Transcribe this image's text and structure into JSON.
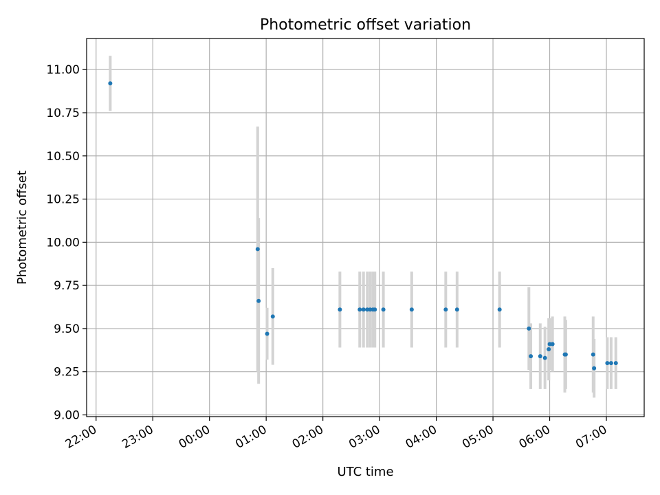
{
  "chart_data": {
    "type": "scatter",
    "title": "Photometric offset variation",
    "xlabel": "UTC time",
    "ylabel": "Photometric offset",
    "x_ticks": [
      "22:00",
      "23:00",
      "00:00",
      "01:00",
      "02:00",
      "03:00",
      "04:00",
      "05:00",
      "06:00",
      "07:00"
    ],
    "y_ticks": [
      "9.00",
      "9.25",
      "9.50",
      "9.75",
      "10.00",
      "10.25",
      "10.50",
      "10.75",
      "11.00"
    ],
    "xlim": [
      "21:50",
      "07:40"
    ],
    "ylim": [
      8.99,
      11.18
    ],
    "grid": true,
    "colors": {
      "marker": "#1f77b4",
      "errorbar": "#d3d3d3",
      "grid": "#b0b0b0"
    },
    "points": [
      {
        "time": "22:15",
        "y": 10.92,
        "yerr": 0.16
      },
      {
        "time": "00:51",
        "y": 9.96,
        "yerr": 0.71
      },
      {
        "time": "00:52",
        "y": 9.66,
        "yerr": 0.48
      },
      {
        "time": "01:01",
        "y": 9.47,
        "yerr": 0.15
      },
      {
        "time": "01:07",
        "y": 9.57,
        "yerr": 0.28
      },
      {
        "time": "02:18",
        "y": 9.61,
        "yerr": 0.22
      },
      {
        "time": "02:39",
        "y": 9.61,
        "yerr": 0.22
      },
      {
        "time": "02:43",
        "y": 9.61,
        "yerr": 0.22
      },
      {
        "time": "02:47",
        "y": 9.61,
        "yerr": 0.22
      },
      {
        "time": "02:50",
        "y": 9.61,
        "yerr": 0.22
      },
      {
        "time": "02:53",
        "y": 9.61,
        "yerr": 0.22
      },
      {
        "time": "02:55",
        "y": 9.61,
        "yerr": 0.22
      },
      {
        "time": "03:04",
        "y": 9.61,
        "yerr": 0.22
      },
      {
        "time": "03:34",
        "y": 9.61,
        "yerr": 0.22
      },
      {
        "time": "04:10",
        "y": 9.61,
        "yerr": 0.22
      },
      {
        "time": "04:22",
        "y": 9.61,
        "yerr": 0.22
      },
      {
        "time": "05:07",
        "y": 9.61,
        "yerr": 0.22
      },
      {
        "time": "05:38",
        "y": 9.5,
        "yerr": 0.24
      },
      {
        "time": "05:40",
        "y": 9.34,
        "yerr": 0.19
      },
      {
        "time": "05:50",
        "y": 9.34,
        "yerr": 0.19
      },
      {
        "time": "05:55",
        "y": 9.33,
        "yerr": 0.18
      },
      {
        "time": "05:59",
        "y": 9.38,
        "yerr": 0.18
      },
      {
        "time": "06:00",
        "y": 9.41,
        "yerr": 0.15
      },
      {
        "time": "06:03",
        "y": 9.41,
        "yerr": 0.16
      },
      {
        "time": "06:16",
        "y": 9.35,
        "yerr": 0.22
      },
      {
        "time": "06:17",
        "y": 9.35,
        "yerr": 0.2
      },
      {
        "time": "06:46",
        "y": 9.35,
        "yerr": 0.22
      },
      {
        "time": "06:47",
        "y": 9.27,
        "yerr": 0.17
      },
      {
        "time": "07:01",
        "y": 9.3,
        "yerr": 0.15
      },
      {
        "time": "07:05",
        "y": 9.3,
        "yerr": 0.15
      },
      {
        "time": "07:10",
        "y": 9.3,
        "yerr": 0.15
      }
    ]
  }
}
